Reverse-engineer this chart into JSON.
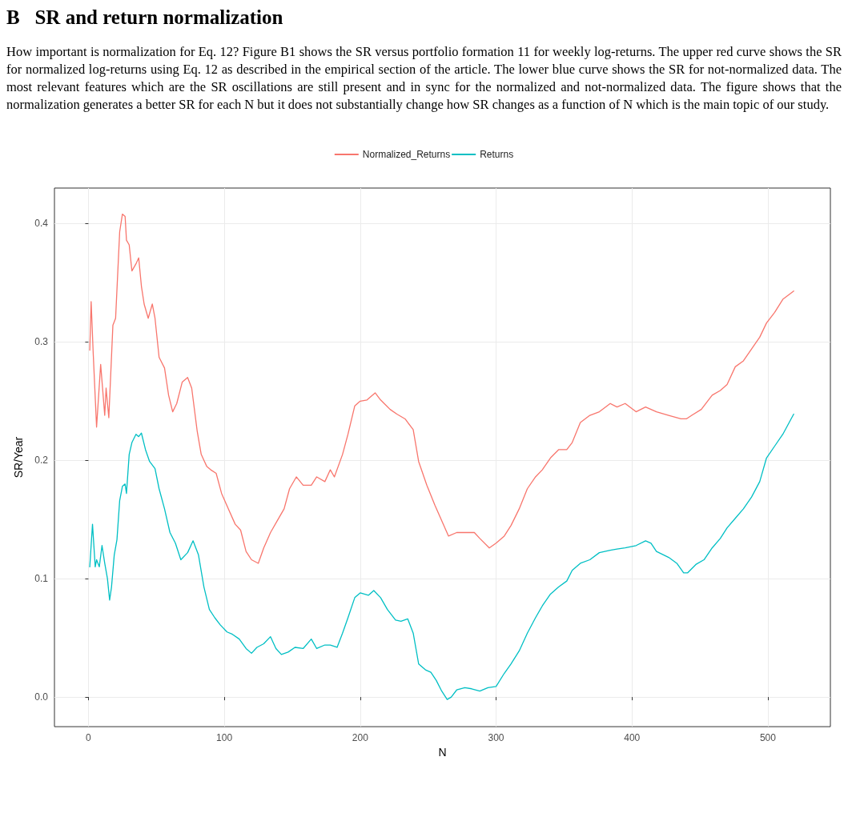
{
  "chart_data": {
    "type": "line",
    "title": "B   SR and return normalization",
    "subtitle": "How important is normalization for Eq. 12? Figure B1 shows the SR versus portfolio formation 11 for weekly log-returns. The upper red curve shows the SR for normalized log-returns using Eq. 12 as described in the empirical section of the article. The lower blue curve shows the SR for not-normalized data. The most relevant features which are the SR oscillations are still present and in sync for the normalized and not-normalized data. The figure shows that the normalization generates a better SR for each N but it does not substantially change how SR changes as a function of N which is the main topic of our study.",
    "xlabel": "N",
    "ylabel": "SR/Year",
    "series": [
      {
        "name": "Normalized_Returns",
        "color": "#f8766d",
        "x": [
          1,
          2,
          3.5,
          6,
          9,
          12,
          13,
          15,
          18,
          20,
          23,
          25,
          27,
          28,
          30,
          32,
          35,
          37,
          39,
          41,
          44,
          47,
          49,
          52,
          56,
          59,
          62,
          65,
          69,
          73,
          76,
          80,
          83,
          87,
          90,
          94,
          98,
          103,
          108,
          112,
          116,
          120,
          125,
          129,
          134,
          139,
          144,
          148,
          153,
          158,
          164,
          168,
          174,
          178,
          181,
          187,
          191,
          196,
          200,
          205,
          211,
          215,
          222,
          227,
          233,
          239,
          243,
          249,
          255,
          260,
          265,
          271,
          277,
          284,
          288,
          295,
          300,
          306,
          311,
          317,
          323,
          329,
          334,
          340,
          346,
          352,
          356,
          362,
          369,
          376,
          384,
          389,
          395,
          403,
          410,
          418,
          427,
          436,
          440,
          444,
          451,
          459,
          465,
          470,
          476,
          482,
          488,
          494,
          499,
          505,
          511,
          519
        ],
        "values": [
          0.293,
          0.334,
          0.291,
          0.228,
          0.281,
          0.238,
          0.261,
          0.236,
          0.314,
          0.32,
          0.393,
          0.408,
          0.406,
          0.386,
          0.382,
          0.36,
          0.366,
          0.371,
          0.347,
          0.332,
          0.32,
          0.332,
          0.32,
          0.287,
          0.278,
          0.255,
          0.241,
          0.248,
          0.266,
          0.27,
          0.261,
          0.225,
          0.205,
          0.195,
          0.192,
          0.189,
          0.172,
          0.159,
          0.146,
          0.141,
          0.123,
          0.116,
          0.113,
          0.126,
          0.139,
          0.149,
          0.159,
          0.176,
          0.186,
          0.179,
          0.179,
          0.186,
          0.182,
          0.192,
          0.186,
          0.205,
          0.222,
          0.246,
          0.25,
          0.251,
          0.257,
          0.251,
          0.243,
          0.239,
          0.235,
          0.226,
          0.199,
          0.179,
          0.162,
          0.149,
          0.136,
          0.139,
          0.139,
          0.139,
          0.134,
          0.126,
          0.13,
          0.136,
          0.145,
          0.159,
          0.176,
          0.186,
          0.192,
          0.202,
          0.209,
          0.209,
          0.215,
          0.232,
          0.238,
          0.241,
          0.248,
          0.245,
          0.248,
          0.241,
          0.245,
          0.241,
          0.238,
          0.235,
          0.235,
          0.238,
          0.243,
          0.255,
          0.259,
          0.264,
          0.279,
          0.284,
          0.294,
          0.304,
          0.316,
          0.325,
          0.336,
          0.343
        ]
      },
      {
        "name": "Returns",
        "color": "#00bfc4",
        "x": [
          1,
          3,
          5,
          6,
          8,
          10,
          12,
          14,
          15.6,
          17,
          19,
          21,
          23,
          25,
          27,
          28,
          30,
          32,
          35,
          37,
          39,
          42,
          45,
          49,
          52,
          56,
          60,
          64,
          68,
          73,
          77,
          81,
          85,
          89,
          93,
          97,
          102,
          106,
          111,
          116,
          120,
          124,
          129,
          134,
          138,
          142,
          147,
          152,
          158,
          164,
          168,
          174,
          178,
          183,
          187,
          191,
          196,
          200,
          206,
          210,
          215,
          220,
          226,
          230,
          235,
          239,
          243,
          248,
          252,
          256,
          260,
          264,
          267,
          271,
          277,
          282,
          288,
          294,
          300,
          306,
          311,
          317,
          323,
          329,
          334,
          340,
          346,
          352,
          356,
          362,
          369,
          376,
          384,
          389,
          395,
          403,
          410,
          414,
          418,
          427,
          433,
          438,
          441,
          447,
          453,
          459,
          465,
          470,
          476,
          482,
          488,
          494,
          499,
          505,
          511,
          519
        ],
        "values": [
          0.11,
          0.146,
          0.11,
          0.116,
          0.11,
          0.128,
          0.113,
          0.1,
          0.082,
          0.093,
          0.12,
          0.133,
          0.166,
          0.178,
          0.18,
          0.172,
          0.205,
          0.215,
          0.222,
          0.22,
          0.223,
          0.209,
          0.199,
          0.193,
          0.176,
          0.159,
          0.139,
          0.13,
          0.116,
          0.122,
          0.132,
          0.12,
          0.093,
          0.074,
          0.067,
          0.061,
          0.055,
          0.053,
          0.049,
          0.041,
          0.037,
          0.042,
          0.045,
          0.051,
          0.041,
          0.036,
          0.038,
          0.042,
          0.041,
          0.049,
          0.041,
          0.044,
          0.044,
          0.042,
          0.054,
          0.067,
          0.084,
          0.088,
          0.086,
          0.09,
          0.084,
          0.074,
          0.065,
          0.064,
          0.066,
          0.054,
          0.028,
          0.023,
          0.021,
          0.014,
          0.005,
          -0.002,
          0,
          0.006,
          0.008,
          0.007,
          0.005,
          0.008,
          0.009,
          0.02,
          0.028,
          0.039,
          0.054,
          0.067,
          0.077,
          0.087,
          0.093,
          0.098,
          0.107,
          0.113,
          0.116,
          0.122,
          0.124,
          0.125,
          0.126,
          0.128,
          0.132,
          0.13,
          0.123,
          0.118,
          0.113,
          0.105,
          0.105,
          0.112,
          0.116,
          0.126,
          0.134,
          0.143,
          0.151,
          0.159,
          0.169,
          0.182,
          0.202,
          0.212,
          0.222,
          0.239
        ]
      }
    ],
    "xlim": [
      -25,
      546
    ],
    "xticks": [
      0,
      100,
      200,
      300,
      400,
      500
    ],
    "ylim": [
      -0.025,
      0.43
    ],
    "yticks": [
      {
        "value": 0,
        "label": "0.0"
      },
      {
        "value": 0.1,
        "label": "0.1"
      },
      {
        "value": 0.2,
        "label": "0.2"
      },
      {
        "value": 0.3,
        "label": "0.3"
      },
      {
        "value": 0.4,
        "label": "0.4"
      }
    ],
    "grid": true,
    "legend": "top"
  }
}
